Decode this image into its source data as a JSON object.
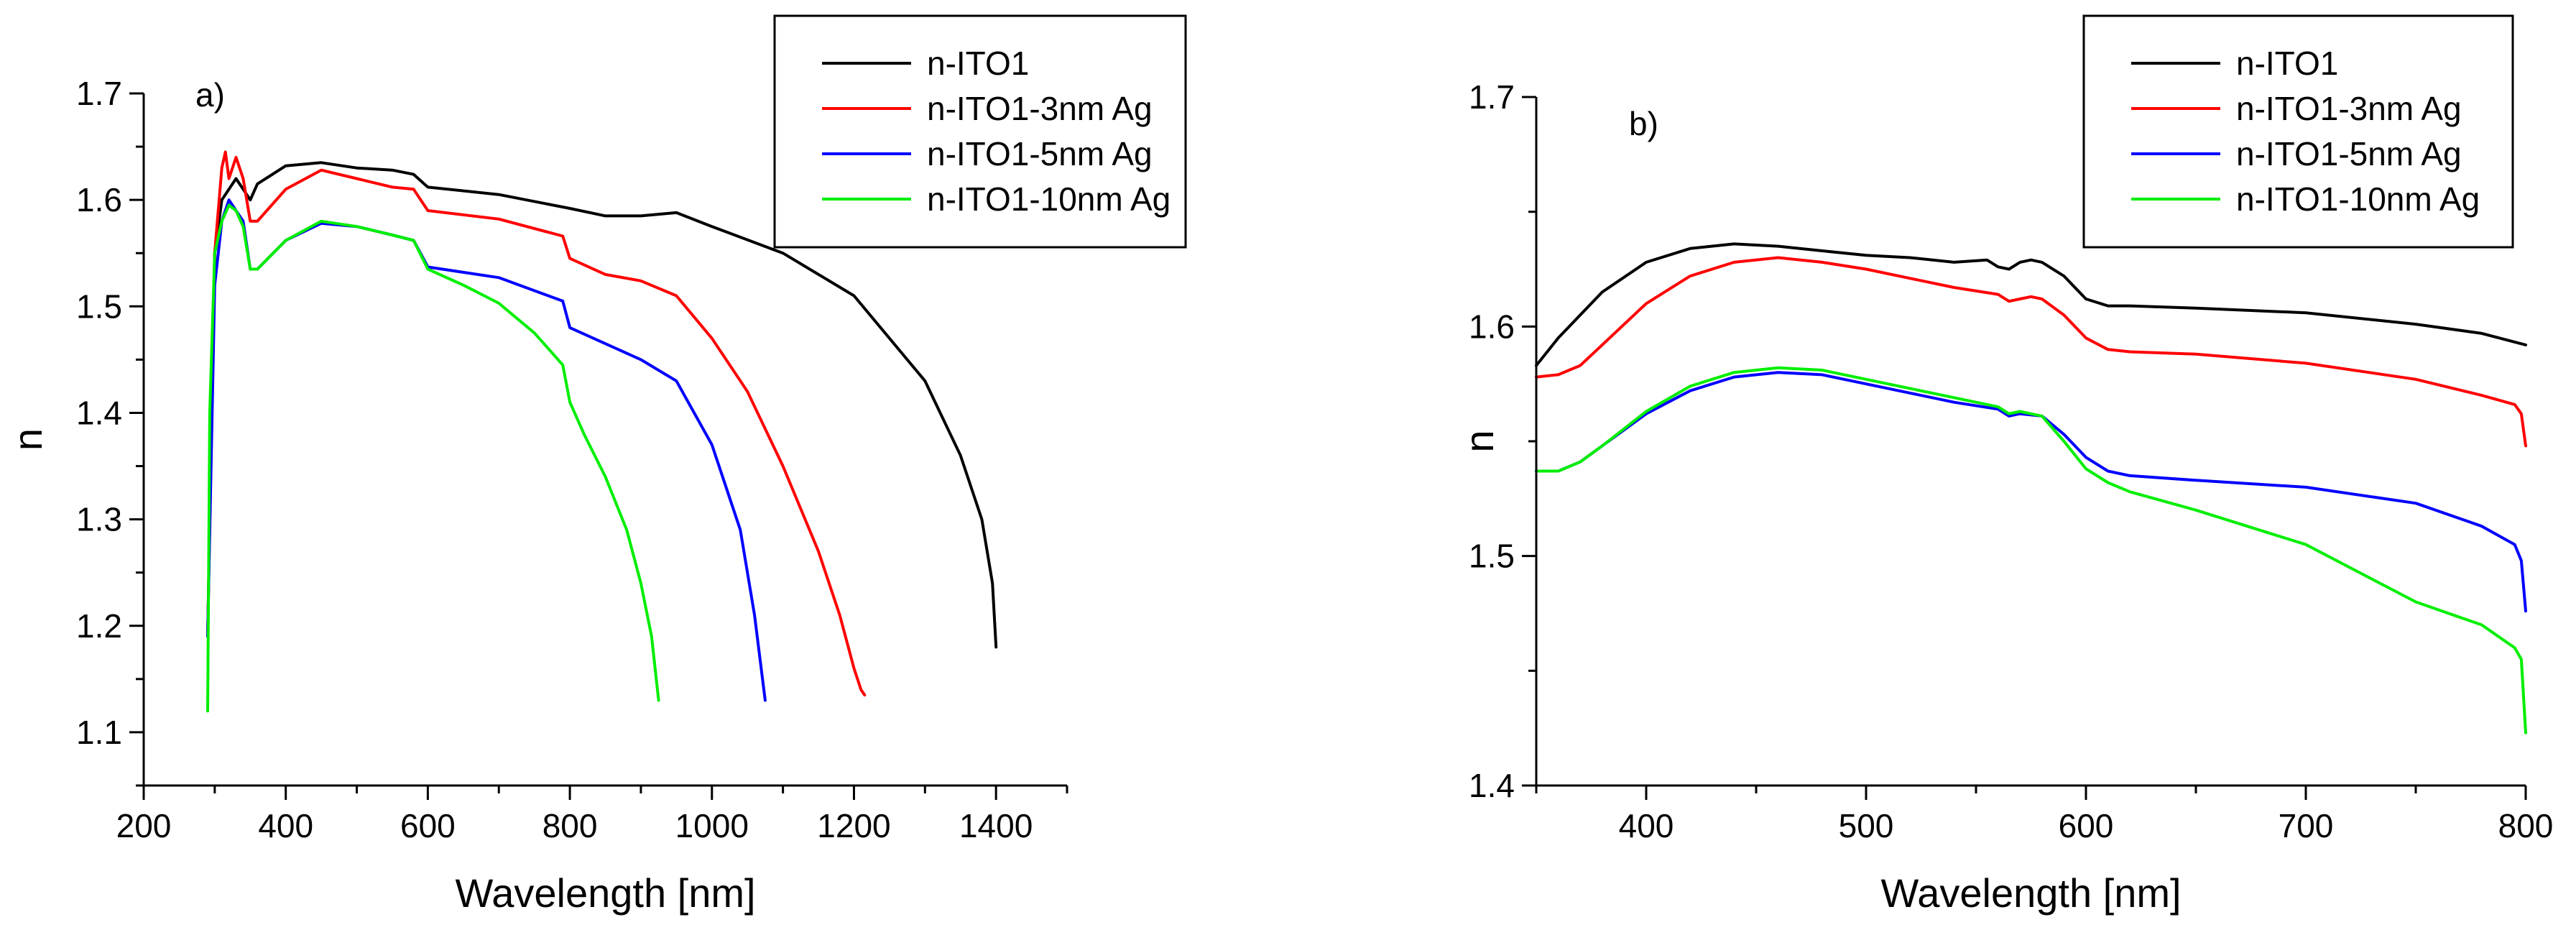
{
  "chart_data": [
    {
      "id": "a",
      "type": "line",
      "panel_label": "a)",
      "xlabel": "Wavelength [nm]",
      "ylabel": "n",
      "xlim": [
        200,
        1500
      ],
      "ylim": [
        1.05,
        1.7
      ],
      "xticks": [
        200,
        400,
        600,
        800,
        1000,
        1200,
        1400
      ],
      "xtick_labels": [
        "200",
        "400",
        "600",
        "800",
        "1000",
        "1200",
        "1400"
      ],
      "yticks": [
        1.1,
        1.2,
        1.3,
        1.4,
        1.5,
        1.6,
        1.7
      ],
      "ytick_labels": [
        "1.1",
        "1.2",
        "1.3",
        "1.4",
        "1.5",
        "1.6",
        "1.7"
      ],
      "legend_position": "top-right",
      "series": [
        {
          "name": "n-ITO1",
          "color": "#000000",
          "x": [
            290,
            300,
            310,
            320,
            330,
            340,
            350,
            360,
            400,
            450,
            500,
            550,
            580,
            600,
            700,
            800,
            850,
            900,
            950,
            1000,
            1100,
            1200,
            1300,
            1350,
            1380,
            1395,
            1400
          ],
          "y": [
            1.19,
            1.55,
            1.6,
            1.61,
            1.62,
            1.61,
            1.6,
            1.615,
            1.632,
            1.635,
            1.63,
            1.628,
            1.624,
            1.612,
            1.605,
            1.592,
            1.585,
            1.585,
            1.588,
            1.575,
            1.55,
            1.51,
            1.43,
            1.36,
            1.3,
            1.24,
            1.18
          ]
        },
        {
          "name": "n-ITO1-3nm Ag",
          "color": "#ff0000",
          "x": [
            290,
            300,
            310,
            315,
            320,
            330,
            340,
            350,
            360,
            400,
            450,
            500,
            550,
            580,
            600,
            700,
            790,
            800,
            850,
            900,
            950,
            1000,
            1050,
            1100,
            1150,
            1180,
            1200,
            1210,
            1215
          ],
          "y": [
            1.19,
            1.55,
            1.63,
            1.645,
            1.62,
            1.64,
            1.62,
            1.58,
            1.58,
            1.61,
            1.628,
            1.62,
            1.612,
            1.61,
            1.59,
            1.582,
            1.566,
            1.545,
            1.53,
            1.524,
            1.51,
            1.47,
            1.42,
            1.35,
            1.27,
            1.21,
            1.16,
            1.14,
            1.135
          ]
        },
        {
          "name": "n-ITO1-5nm Ag",
          "color": "#0000ff",
          "x": [
            290,
            300,
            310,
            320,
            330,
            340,
            350,
            360,
            400,
            450,
            500,
            550,
            580,
            600,
            700,
            790,
            800,
            850,
            900,
            950,
            1000,
            1040,
            1060,
            1075
          ],
          "y": [
            1.19,
            1.52,
            1.58,
            1.6,
            1.59,
            1.58,
            1.535,
            1.535,
            1.562,
            1.578,
            1.575,
            1.567,
            1.562,
            1.537,
            1.527,
            1.505,
            1.48,
            1.465,
            1.45,
            1.43,
            1.37,
            1.29,
            1.21,
            1.13
          ]
        },
        {
          "name": "n-ITO1-10nm Ag",
          "color": "#00ee00",
          "x": [
            290,
            293,
            300,
            310,
            320,
            330,
            340,
            350,
            360,
            400,
            450,
            500,
            550,
            580,
            600,
            650,
            700,
            750,
            790,
            800,
            820,
            850,
            880,
            900,
            915,
            925
          ],
          "y": [
            1.12,
            1.4,
            1.55,
            1.58,
            1.595,
            1.59,
            1.575,
            1.535,
            1.535,
            1.562,
            1.58,
            1.575,
            1.567,
            1.562,
            1.535,
            1.52,
            1.503,
            1.475,
            1.445,
            1.41,
            1.38,
            1.34,
            1.29,
            1.24,
            1.19,
            1.13
          ]
        }
      ]
    },
    {
      "id": "b",
      "type": "line",
      "panel_label": "b)",
      "xlabel": "Wavelength [nm]",
      "ylabel": "n",
      "xlim": [
        350,
        800
      ],
      "ylim": [
        1.4,
        1.7
      ],
      "xticks": [
        400,
        500,
        600,
        700,
        800
      ],
      "xtick_labels": [
        "400",
        "500",
        "600",
        "700",
        "800"
      ],
      "yticks": [
        1.4,
        1.5,
        1.6,
        1.7
      ],
      "ytick_labels": [
        "1.4",
        "1.5",
        "1.6",
        "1.7"
      ],
      "legend_position": "top-right",
      "series": [
        {
          "name": "n-ITO1",
          "color": "#000000",
          "x": [
            350,
            360,
            380,
            400,
            420,
            440,
            460,
            480,
            500,
            520,
            540,
            555,
            560,
            565,
            570,
            575,
            580,
            590,
            600,
            610,
            620,
            650,
            700,
            750,
            780,
            800
          ],
          "y": [
            1.583,
            1.595,
            1.615,
            1.628,
            1.634,
            1.636,
            1.635,
            1.633,
            1.631,
            1.63,
            1.628,
            1.629,
            1.626,
            1.625,
            1.628,
            1.629,
            1.628,
            1.622,
            1.612,
            1.609,
            1.609,
            1.608,
            1.606,
            1.601,
            1.597,
            1.592
          ]
        },
        {
          "name": "n-ITO1-3nm Ag",
          "color": "#ff0000",
          "x": [
            350,
            360,
            370,
            380,
            400,
            420,
            440,
            460,
            480,
            500,
            520,
            540,
            560,
            565,
            570,
            575,
            580,
            590,
            600,
            610,
            620,
            650,
            700,
            750,
            780,
            795,
            798,
            800
          ],
          "y": [
            1.578,
            1.579,
            1.583,
            1.592,
            1.61,
            1.622,
            1.628,
            1.63,
            1.628,
            1.625,
            1.621,
            1.617,
            1.614,
            1.611,
            1.612,
            1.613,
            1.612,
            1.605,
            1.595,
            1.59,
            1.589,
            1.588,
            1.584,
            1.577,
            1.57,
            1.566,
            1.562,
            1.548
          ]
        },
        {
          "name": "n-ITO1-5nm Ag",
          "color": "#0000ff",
          "x": [
            350,
            360,
            370,
            380,
            400,
            420,
            440,
            460,
            480,
            500,
            520,
            540,
            560,
            565,
            570,
            580,
            590,
            600,
            610,
            620,
            650,
            700,
            750,
            780,
            795,
            798,
            800
          ],
          "y": [
            1.537,
            1.537,
            1.541,
            1.548,
            1.562,
            1.572,
            1.578,
            1.58,
            1.579,
            1.575,
            1.571,
            1.567,
            1.564,
            1.561,
            1.562,
            1.561,
            1.553,
            1.543,
            1.537,
            1.535,
            1.533,
            1.53,
            1.523,
            1.513,
            1.505,
            1.498,
            1.476
          ]
        },
        {
          "name": "n-ITO1-10nm Ag",
          "color": "#00ee00",
          "x": [
            350,
            360,
            370,
            380,
            400,
            420,
            440,
            460,
            480,
            500,
            520,
            540,
            560,
            565,
            570,
            580,
            590,
            600,
            610,
            620,
            650,
            700,
            730,
            750,
            780,
            795,
            798,
            800
          ],
          "y": [
            1.537,
            1.537,
            1.541,
            1.548,
            1.563,
            1.574,
            1.58,
            1.582,
            1.581,
            1.577,
            1.573,
            1.569,
            1.565,
            1.562,
            1.563,
            1.561,
            1.55,
            1.538,
            1.532,
            1.528,
            1.52,
            1.505,
            1.49,
            1.48,
            1.47,
            1.46,
            1.455,
            1.423
          ]
        }
      ]
    }
  ]
}
